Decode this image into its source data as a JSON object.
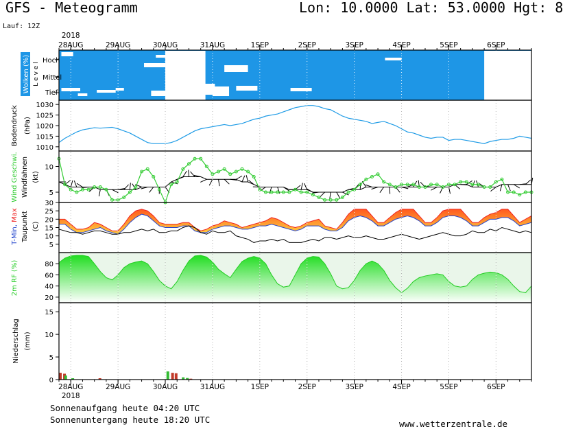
{
  "header": {
    "title": "GFS - Meteogramm",
    "coords": "Lon: 10.0000 Lat: 53.0000 Hgt: 8",
    "run": "Lauf: 12Z"
  },
  "footer": {
    "sunrise": "Sonnenaufgang heute 04:20 UTC",
    "sunset": "Sonnenuntergang heute 18:20 UTC",
    "site": "www.wetterzentrale.de"
  },
  "colors": {
    "cloud": "#1e96e6",
    "pressure": "#1e9be6",
    "wind": "#33cc33",
    "tmin": "#2244cc",
    "tmax": "#ee2222",
    "fill_low": "#ffd040",
    "fill_high": "#ff5a1e",
    "rh": "#22cc22",
    "precip_rain": "#c23a2a",
    "precip_conv": "#33bb33"
  },
  "chart_data": {
    "type": "line",
    "year": "2018",
    "dates": [
      "28AUG",
      "29AUG",
      "30AUG",
      "31AUG",
      "1SEP",
      "2SEP",
      "3SEP",
      "4SEP",
      "5SEP",
      "6SEP"
    ],
    "panels": [
      {
        "id": "clouds",
        "ylabel": "Wolken (%)",
        "ylabel2": "L e v e l",
        "levels": [
          "Hoch",
          "Mittel",
          "Tief"
        ]
      },
      {
        "id": "pressure",
        "ylabel": "Bodendruck",
        "ylabel2": "(hPa)",
        "ylim": [
          1008,
          1032
        ],
        "ticks": [
          1010,
          1015,
          1020,
          1025,
          1030
        ],
        "x": [
          0,
          0.5,
          1,
          1.5,
          2,
          2.5,
          3,
          3.5,
          4,
          4.5,
          5,
          5.5,
          6,
          6.5,
          7,
          7.5,
          8,
          8.5,
          9,
          9.5,
          10,
          10.5,
          11,
          11.5,
          12,
          12.5,
          13,
          13.5,
          14,
          14.5,
          15,
          15.5,
          16,
          16.5,
          17,
          17.5,
          18,
          18.5,
          19,
          19.5,
          20,
          20.5,
          21,
          21.5,
          22,
          22.5,
          23,
          23.5,
          24,
          24.5,
          25,
          25.5,
          26,
          26.5,
          27,
          27.5,
          28,
          28.5,
          29,
          29.5,
          30,
          30.5,
          31,
          31.5,
          32,
          32.5,
          33,
          33.5,
          34,
          34.5,
          35,
          35.5,
          36,
          36.5,
          37,
          37.5,
          38,
          38.5,
          39,
          39.5,
          40
        ],
        "series": [
          {
            "values": [
              1012,
              1014,
              1015.5,
              1017,
              1018,
              1018.5,
              1019,
              1018.8,
              1019,
              1019.2,
              1018.5,
              1017.5,
              1016.5,
              1015,
              1013.5,
              1012,
              1011.5,
              1011.5,
              1011.5,
              1012,
              1013,
              1014.5,
              1016,
              1017.5,
              1018.5,
              1019,
              1019.5,
              1020,
              1020.5,
              1020,
              1020.5,
              1021,
              1022,
              1023,
              1023.5,
              1024.5,
              1025,
              1025.5,
              1026.5,
              1027.5,
              1028.5,
              1029,
              1029.5,
              1029.5,
              1029,
              1028,
              1027.5,
              1026,
              1024.5,
              1023.5,
              1023,
              1022.5,
              1022,
              1021,
              1021.5,
              1022,
              1021,
              1020,
              1018.5,
              1017,
              1016.5,
              1015.5,
              1014.5,
              1014,
              1014.5,
              1014.5,
              1013,
              1013.5,
              1013.5,
              1013,
              1012.5,
              1012,
              1011.5,
              1012.5,
              1013,
              1013.5,
              1013.5,
              1014,
              1015,
              1014.5,
              1014
            ]
          }
        ]
      },
      {
        "id": "wind",
        "ylabel": "Wind Geschwi.",
        "ylabel2": "Windfahnen",
        "ylabel3": "(kt)",
        "ylim": [
          3,
          13
        ],
        "ticks": [
          5,
          10
        ],
        "x": [
          0,
          0.5,
          1,
          1.5,
          2,
          2.5,
          3,
          3.5,
          4,
          4.5,
          5,
          5.5,
          6,
          6.5,
          7,
          7.5,
          8,
          8.5,
          9,
          9.5,
          10,
          10.5,
          11,
          11.5,
          12,
          12.5,
          13,
          13.5,
          14,
          14.5,
          15,
          15.5,
          16,
          16.5,
          17,
          17.5,
          18,
          18.5,
          19,
          19.5,
          20,
          20.5,
          21,
          21.5,
          22,
          22.5,
          23,
          23.5,
          24,
          24.5,
          25,
          25.5,
          26,
          26.5,
          27,
          27.5,
          28,
          28.5,
          29,
          29.5,
          30,
          30.5,
          31,
          31.5,
          32,
          32.5,
          33,
          33.5,
          34,
          34.5,
          35,
          35.5,
          36,
          36.5,
          37,
          37.5,
          38,
          38.5,
          39,
          39.5,
          40
        ],
        "series": [
          {
            "values": [
              11.5,
              6.5,
              5.5,
              5,
              5.5,
              5.5,
              6,
              6,
              5.5,
              3.5,
              3.5,
              4,
              5,
              6,
              9,
              9.5,
              8,
              5.5,
              3,
              6.5,
              7,
              9.5,
              10.5,
              11.5,
              11.5,
              10,
              8.5,
              9,
              9.5,
              8.5,
              9,
              9.5,
              9,
              8,
              5.5,
              5,
              5,
              5,
              5,
              5,
              5.5,
              5,
              5,
              4.5,
              4,
              3.5,
              3.5,
              3.5,
              4,
              5,
              5.5,
              6.5,
              7.5,
              8,
              8.5,
              7,
              6.5,
              6,
              6.5,
              6.5,
              6.5,
              6,
              6,
              6.5,
              6.5,
              6,
              6.5,
              6.5,
              7,
              7,
              6.5,
              6.5,
              6,
              6,
              7,
              7.5,
              5,
              5,
              4.5,
              5,
              5
            ]
          },
          {
            "values": [
              7,
              6.5,
              6,
              6,
              6,
              6,
              6,
              5.5,
              5.5,
              5.5,
              5.5,
              5.5,
              5.5,
              5.5,
              6,
              6,
              6,
              6,
              6,
              7,
              7.5,
              8,
              8,
              8,
              8,
              7.5,
              7.5,
              7.5,
              7.5,
              7.5,
              7.5,
              7,
              7,
              6.5,
              6,
              6,
              6,
              6,
              6,
              5.5,
              5.5,
              5.5,
              5.5,
              5,
              5,
              5,
              5,
              5,
              5,
              5.5,
              5.5,
              5.5,
              6,
              6,
              6,
              6,
              6,
              6,
              6,
              6,
              6,
              6,
              6,
              6,
              6,
              6,
              6,
              6.5,
              6.5,
              6.5,
              6,
              6,
              6,
              6,
              6,
              6.5,
              6.5,
              6.5,
              6.5,
              6.5,
              6.5
            ]
          }
        ]
      },
      {
        "id": "temperature",
        "ylabel": "T-Min, Max",
        "ylabel2": "Taupunkt",
        "ylabel3": "(C)",
        "ylim": [
          0,
          30
        ],
        "ticks": [
          5,
          10,
          15,
          20,
          25,
          30
        ],
        "x": [
          0,
          0.5,
          1,
          1.5,
          2,
          2.5,
          3,
          3.5,
          4,
          4.5,
          5,
          5.5,
          6,
          6.5,
          7,
          7.5,
          8,
          8.5,
          9,
          9.5,
          10,
          10.5,
          11,
          11.5,
          12,
          12.5,
          13,
          13.5,
          14,
          14.5,
          15,
          15.5,
          16,
          16.5,
          17,
          17.5,
          18,
          18.5,
          19,
          19.5,
          20,
          20.5,
          21,
          21.5,
          22,
          22.5,
          23,
          23.5,
          24,
          24.5,
          25,
          25.5,
          26,
          26.5,
          27,
          27.5,
          28,
          28.5,
          29,
          29.5,
          30,
          30.5,
          31,
          31.5,
          32,
          32.5,
          33,
          33.5,
          34,
          34.5,
          35,
          35.5,
          36,
          36.5,
          37,
          37.5,
          38,
          38.5,
          39,
          39.5,
          40
        ],
        "series": [
          {
            "name": "T-Max",
            "values": [
              20,
              20,
              17,
              14,
              14,
              15,
              18,
              17,
              15,
              13,
              13,
              17,
              22,
              25,
              26,
              25,
              22,
              18,
              17,
              17,
              17,
              18,
              18,
              15,
              13,
              14,
              16,
              17,
              19,
              18,
              17,
              15,
              16,
              17,
              18,
              19,
              21,
              20,
              18,
              16,
              15,
              16,
              18,
              19,
              20,
              16,
              15,
              14,
              18,
              23,
              26,
              26,
              26,
              22,
              18,
              18,
              21,
              24,
              26,
              26,
              26,
              22,
              18,
              18,
              21,
              25,
              26,
              26,
              26,
              22,
              18,
              18,
              21,
              23,
              24,
              26,
              26,
              22,
              18,
              20,
              22
            ]
          },
          {
            "name": "T-Min",
            "values": [
              17,
              17,
              14,
              12,
              12,
              13,
              14,
              15,
              13,
              12,
              11,
              14,
              18,
              21,
              23,
              22,
              19,
              16,
              15,
              15,
              15,
              16,
              16,
              13,
              12,
              12,
              14,
              15,
              16,
              16,
              15,
              14,
              14,
              15,
              16,
              16,
              17,
              16,
              15,
              14,
              13,
              14,
              16,
              16,
              16,
              14,
              13,
              13,
              15,
              19,
              21,
              22,
              21,
              19,
              16,
              16,
              18,
              20,
              21,
              22,
              21,
              19,
              16,
              16,
              18,
              21,
              22,
              22,
              21,
              19,
              16,
              16,
              18,
              20,
              20,
              21,
              21,
              19,
              16,
              17,
              18
            ]
          },
          {
            "name": "Taupunkt",
            "values": [
              14,
              13,
              12,
              12,
              11,
              12,
              13,
              13,
              12,
              11,
              11,
              12,
              12,
              13,
              14,
              13,
              14,
              12,
              12,
              13,
              13,
              15,
              16,
              15,
              12,
              11,
              13,
              12,
              12,
              13,
              10,
              9,
              8,
              6,
              7,
              7,
              8,
              7,
              8,
              6,
              6,
              6,
              7,
              8,
              7,
              9,
              9,
              8,
              9,
              10,
              9,
              9,
              10,
              9,
              8,
              8,
              9,
              10,
              11,
              10,
              9,
              8,
              9,
              10,
              11,
              12,
              11,
              10,
              10,
              11,
              13,
              12,
              12,
              14,
              13,
              15,
              14,
              13,
              12,
              13,
              12
            ]
          }
        ]
      },
      {
        "id": "humidity",
        "ylabel": "2m RF (%)",
        "ylim": [
          10,
          100
        ],
        "ticks": [
          20,
          40,
          60,
          80
        ],
        "x": [
          0,
          0.5,
          1,
          1.5,
          2,
          2.5,
          3,
          3.5,
          4,
          4.5,
          5,
          5.5,
          6,
          6.5,
          7,
          7.5,
          8,
          8.5,
          9,
          9.5,
          10,
          10.5,
          11,
          11.5,
          12,
          12.5,
          13,
          13.5,
          14,
          14.5,
          15,
          15.5,
          16,
          16.5,
          17,
          17.5,
          18,
          18.5,
          19,
          19.5,
          20,
          20.5,
          21,
          21.5,
          22,
          22.5,
          23,
          23.5,
          24,
          24.5,
          25,
          25.5,
          26,
          26.5,
          27,
          27.5,
          28,
          28.5,
          29,
          29.5,
          30,
          30.5,
          31,
          31.5,
          32,
          32.5,
          33,
          33.5,
          34,
          34.5,
          35,
          35.5,
          36,
          36.5,
          37,
          37.5,
          38,
          38.5,
          39,
          39.5,
          40
        ],
        "series": [
          {
            "values": [
              82,
              90,
              94,
              95,
              95,
              93,
              80,
              66,
              55,
              51,
              60,
              73,
              80,
              83,
              85,
              80,
              66,
              50,
              40,
              35,
              48,
              68,
              85,
              94,
              95,
              92,
              83,
              70,
              62,
              55,
              70,
              84,
              90,
              93,
              90,
              80,
              60,
              44,
              38,
              40,
              60,
              80,
              90,
              93,
              92,
              80,
              62,
              40,
              35,
              37,
              50,
              68,
              80,
              85,
              80,
              68,
              50,
              37,
              28,
              36,
              48,
              55,
              58,
              60,
              62,
              60,
              48,
              40,
              38,
              40,
              52,
              60,
              63,
              65,
              64,
              60,
              52,
              40,
              30,
              28,
              40
            ]
          }
        ]
      },
      {
        "id": "precip",
        "ylabel": "Niederschlag",
        "ylabel2": "(mm)",
        "ylim": [
          0,
          17
        ],
        "ticks": [
          0,
          5,
          10,
          15
        ],
        "bars": [
          {
            "x": 0.0,
            "value": 1.5,
            "kind": "rain"
          },
          {
            "x": 0.35,
            "value": 1.3,
            "kind": "rain"
          },
          {
            "x": 0.45,
            "value": 0.9,
            "kind": "conv"
          },
          {
            "x": 1.05,
            "value": 0.3,
            "kind": "conv"
          },
          {
            "x": 3.35,
            "value": 0.3,
            "kind": "rain"
          },
          {
            "x": 9.1,
            "value": 1.8,
            "kind": "conv"
          },
          {
            "x": 9.5,
            "value": 1.5,
            "kind": "rain"
          },
          {
            "x": 9.8,
            "value": 1.4,
            "kind": "rain"
          },
          {
            "x": 10.4,
            "value": 0.5,
            "kind": "conv"
          },
          {
            "x": 10.75,
            "value": 0.35,
            "kind": "conv"
          },
          {
            "x": 11.05,
            "value": 0.2,
            "kind": "rain"
          }
        ]
      }
    ]
  }
}
